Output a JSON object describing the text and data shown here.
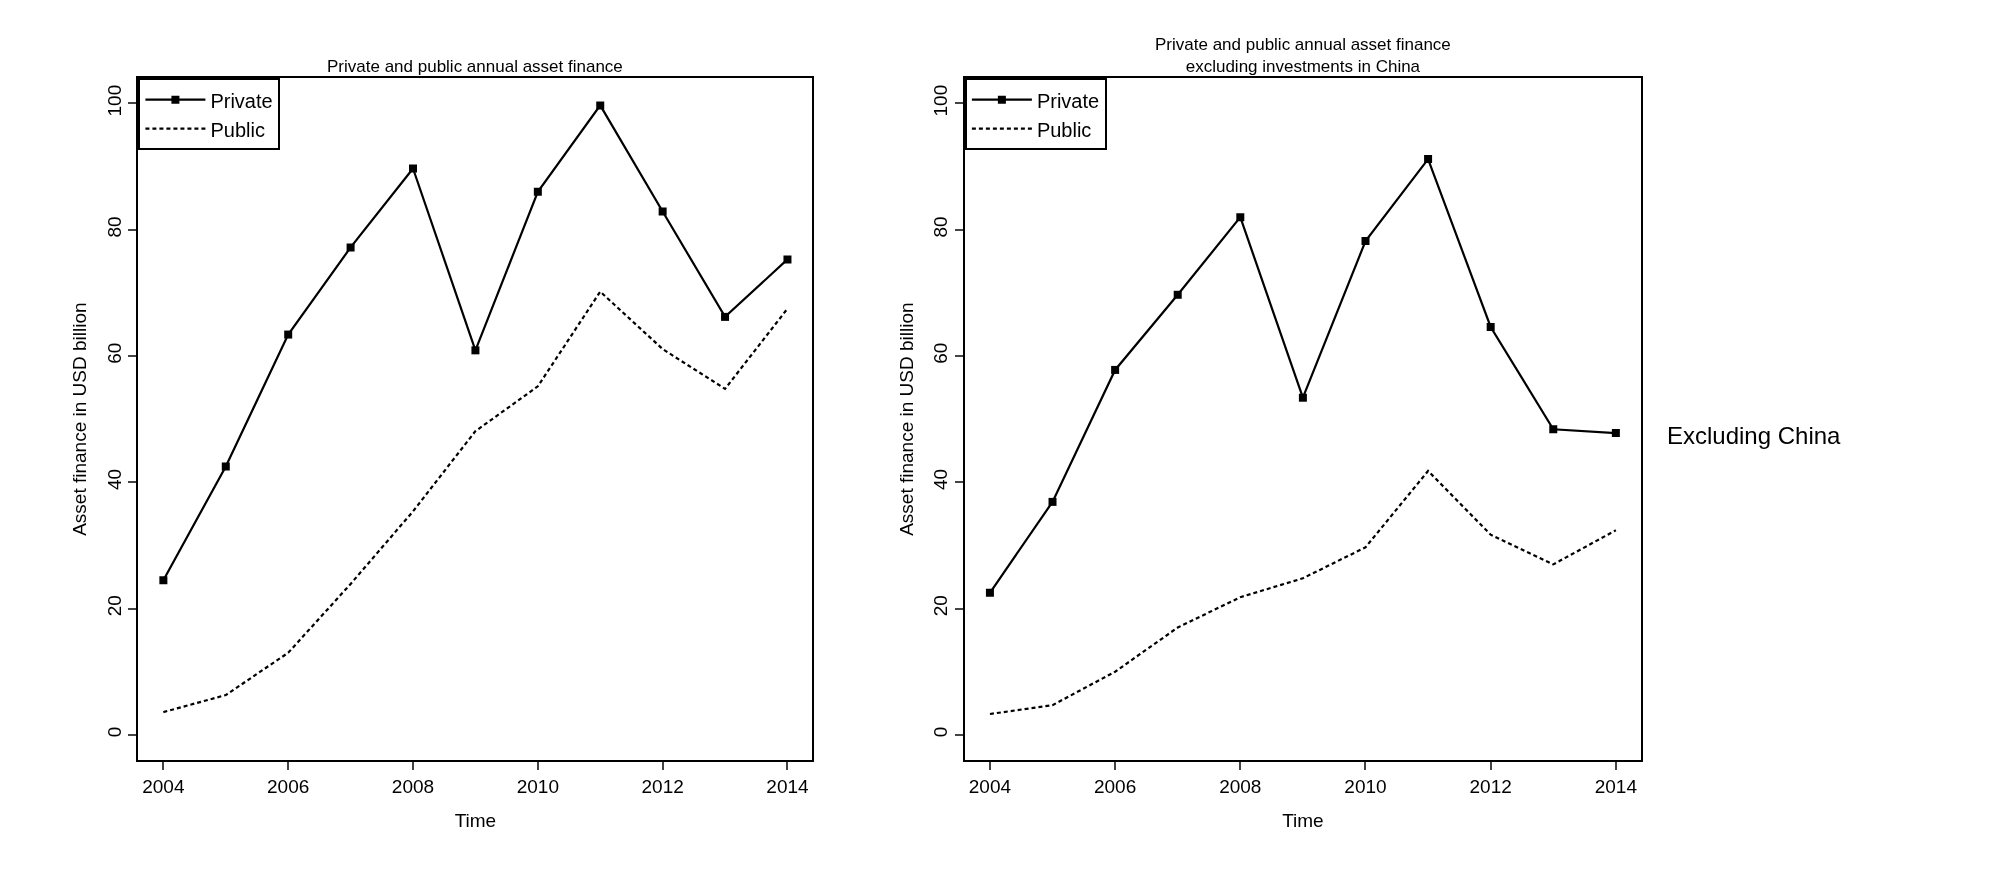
{
  "chart_data": [
    {
      "type": "line",
      "title": "Private and public annual asset finance",
      "xlabel": "Time",
      "ylabel": "Asset finance in USD billion",
      "x": [
        2004,
        2005,
        2006,
        2007,
        2008,
        2009,
        2010,
        2011,
        2012,
        2013,
        2014
      ],
      "series": [
        {
          "name": "Private",
          "color": "#000000",
          "marker": "square",
          "line_style": "solid",
          "values": [
            24.5,
            42.5,
            63.4,
            77.2,
            89.7,
            60.9,
            86.0,
            99.7,
            82.9,
            66.2,
            75.3
          ]
        },
        {
          "name": "Public",
          "color": "#000000",
          "marker": "none",
          "line_style": "dashed",
          "values": [
            3.6,
            6.3,
            13,
            23.9,
            35.4,
            48.1,
            55.2,
            70.2,
            61.1,
            54.8,
            67.5
          ]
        }
      ],
      "xlim": [
        2003.6,
        2014.4
      ],
      "xticks": [
        2004,
        2006,
        2008,
        2010,
        2012,
        2014
      ],
      "ylim": [
        -4,
        104
      ],
      "yticks": [
        0,
        20,
        40,
        60,
        80,
        100
      ],
      "legend": "top left"
    },
    {
      "type": "line",
      "title": "Private and public annual asset finance\nexcluding investments in China",
      "xlabel": "Time",
      "ylabel": "Asset finance in USD billion",
      "x": [
        2004,
        2005,
        2006,
        2007,
        2008,
        2009,
        2010,
        2011,
        2012,
        2013,
        2014
      ],
      "series": [
        {
          "name": "Private",
          "color": "#000000",
          "marker": "square",
          "line_style": "solid",
          "values": [
            22.5,
            36.9,
            57.8,
            69.7,
            82.0,
            53.4,
            78.2,
            91.2,
            64.6,
            48.4,
            47.8
          ]
        },
        {
          "name": "Public",
          "color": "#000000",
          "marker": "none",
          "line_style": "dashed",
          "values": [
            3.3,
            4.7,
            10,
            17,
            21.8,
            24.8,
            29.7,
            41.8,
            31.7,
            27,
            32.4
          ]
        }
      ],
      "xlim": [
        2003.6,
        2014.4
      ],
      "xticks": [
        2004,
        2006,
        2008,
        2010,
        2012,
        2014
      ],
      "ylim": [
        -4,
        104
      ],
      "yticks": [
        0,
        20,
        40,
        60,
        80,
        100
      ],
      "legend": "top left",
      "annotations": [
        "Excluding China"
      ]
    }
  ]
}
